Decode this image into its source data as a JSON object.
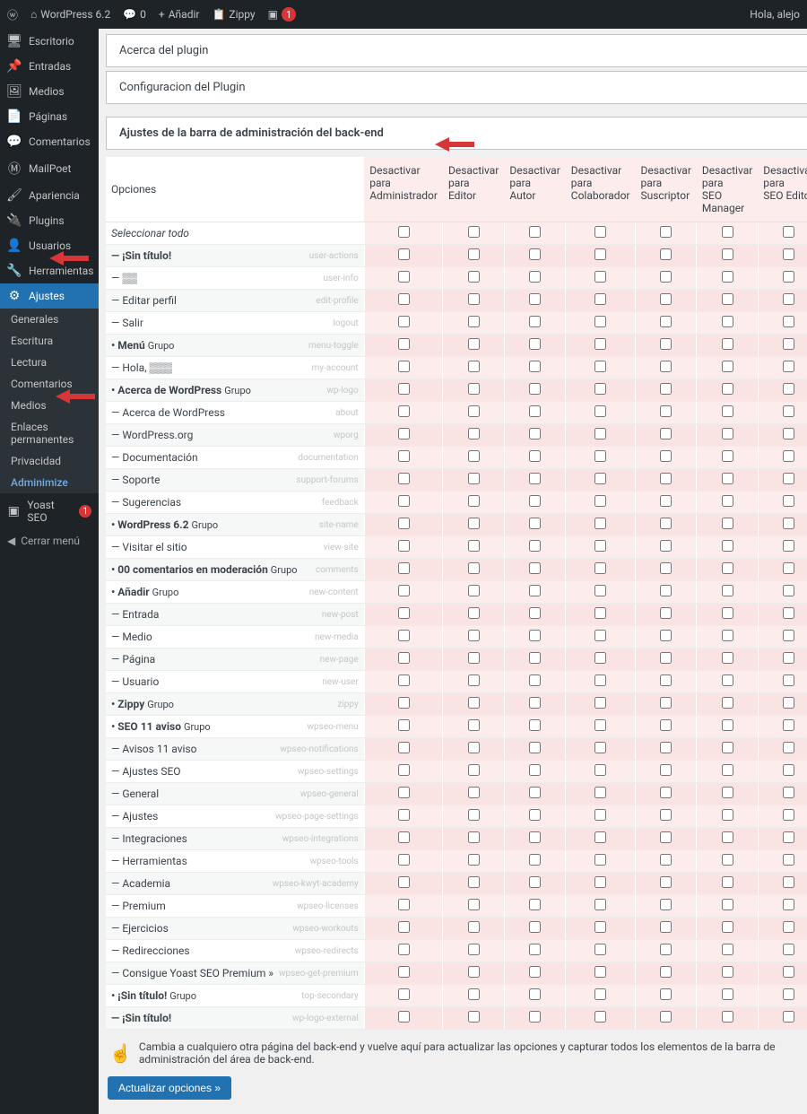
{
  "adminbar": {
    "site_name": "WordPress 6.2",
    "comments_count": "0",
    "add_new": "Añadir",
    "zippy": "Zippy",
    "seo_count": "1",
    "greeting": "Hola, alejo"
  },
  "sidebar": {
    "items": [
      {
        "icon": "🖥",
        "label": "Escritorio"
      },
      {
        "icon": "📌",
        "label": "Entradas"
      },
      {
        "icon": "🖼",
        "label": "Medios"
      },
      {
        "icon": "📄",
        "label": "Páginas"
      },
      {
        "icon": "💬",
        "label": "Comentarios"
      },
      {
        "icon": "Ⓜ",
        "label": "MailPoet"
      },
      {
        "icon": "🖌",
        "label": "Apariencia"
      },
      {
        "icon": "🔌",
        "label": "Plugins"
      },
      {
        "icon": "👤",
        "label": "Usuarios"
      },
      {
        "icon": "🔧",
        "label": "Herramientas"
      },
      {
        "icon": "⚙",
        "label": "Ajustes",
        "current": true
      }
    ],
    "submenu": [
      {
        "label": "Generales"
      },
      {
        "label": "Escritura"
      },
      {
        "label": "Lectura"
      },
      {
        "label": "Comentarios"
      },
      {
        "label": "Medios"
      },
      {
        "label": "Enlaces permanentes"
      },
      {
        "label": "Privacidad"
      },
      {
        "label": "Adminimize",
        "current": true
      }
    ],
    "yoast": {
      "icon": "▣",
      "label": "Yoast SEO",
      "badge": "1"
    },
    "collapse_label": "Cerrar menú"
  },
  "panels": {
    "about": "Acerca del plugin",
    "config": "Configuracion del Plugin",
    "section": "Ajustes de la barra de administración del back-end"
  },
  "columns": {
    "options": "Opciones",
    "roles": [
      "Desactivar para Administrador",
      "Desactivar para Editor",
      "Desactivar para Autor",
      "Desactivar para Colaborador",
      "Desactivar para Suscriptor",
      "Desactivar para SEO Manager",
      "Desactivar para SEO Editor"
    ]
  },
  "rows": [
    {
      "label": "Seleccionar todo",
      "slug": "",
      "style": "sel-all"
    },
    {
      "label": "— ¡Sin título!",
      "slug": "user-actions",
      "bold": true
    },
    {
      "label": "— ▒▒",
      "slug": "user-info"
    },
    {
      "label": "— Editar perfil",
      "slug": "edit-profile"
    },
    {
      "label": "— Salir",
      "slug": "logout"
    },
    {
      "label": "• Menú",
      "suffix": "Grupo",
      "slug": "menu-toggle",
      "bold": true
    },
    {
      "label": "— Hola, ▒▒▒",
      "slug": "my-account"
    },
    {
      "label": "• Acerca de WordPress",
      "suffix": "Grupo",
      "slug": "wp-logo",
      "bold": true
    },
    {
      "label": "— Acerca de WordPress",
      "slug": "about"
    },
    {
      "label": "— WordPress.org",
      "slug": "wporg"
    },
    {
      "label": "— Documentación",
      "slug": "documentation"
    },
    {
      "label": "— Soporte",
      "slug": "support-forums"
    },
    {
      "label": "— Sugerencias",
      "slug": "feedback"
    },
    {
      "label": "• WordPress 6.2",
      "suffix": "Grupo",
      "slug": "site-name",
      "bold": true
    },
    {
      "label": "— Visitar el sitio",
      "slug": "view-site"
    },
    {
      "label": "• 00 comentarios en moderación",
      "suffix": "Grupo",
      "slug": "comments",
      "bold": true
    },
    {
      "label": "• Añadir",
      "suffix": "Grupo",
      "slug": "new-content",
      "bold": true
    },
    {
      "label": "— Entrada",
      "slug": "new-post"
    },
    {
      "label": "— Medio",
      "slug": "new-media"
    },
    {
      "label": "— Página",
      "slug": "new-page"
    },
    {
      "label": "— Usuario",
      "slug": "new-user"
    },
    {
      "label": "• Zippy",
      "suffix": "Grupo",
      "slug": "zippy",
      "bold": true
    },
    {
      "label": "• SEO 11 aviso",
      "suffix": "Grupo",
      "slug": "wpseo-menu",
      "bold": true
    },
    {
      "label": "— Avisos 11 aviso",
      "slug": "wpseo-notifications"
    },
    {
      "label": "— Ajustes SEO",
      "slug": "wpseo-settings"
    },
    {
      "label": "— General",
      "slug": "wpseo-general"
    },
    {
      "label": "— Ajustes",
      "slug": "wpseo-page-settings"
    },
    {
      "label": "— Integraciones",
      "slug": "wpseo-integrations"
    },
    {
      "label": "— Herramientas",
      "slug": "wpseo-tools"
    },
    {
      "label": "— Academia",
      "slug": "wpseo-kwyt-academy"
    },
    {
      "label": "— Premium",
      "slug": "wpseo-licenses"
    },
    {
      "label": "— Ejercicios",
      "slug": "wpseo-workouts"
    },
    {
      "label": "— Redirecciones",
      "slug": "wpseo-redirects"
    },
    {
      "label": "— Consigue Yoast SEO Premium »",
      "slug": "wpseo-get-premium"
    },
    {
      "label": "• ¡Sin título!",
      "suffix": "Grupo",
      "slug": "top-secondary",
      "bold": true
    },
    {
      "label": "— ¡Sin título!",
      "slug": "wp-logo-external",
      "bold": true
    }
  ],
  "note_icon": "☝️",
  "note_text": "Cambia a cualquiero otra página del back-end y vuelve aquí para actualizar las opciones y capturar todos los elementos de la barra de administración del área de back-end.",
  "save_button": "Actualizar opciones »",
  "colors": {
    "accent": "#2271b1",
    "danger": "#d63638",
    "pink": "#fcecec"
  }
}
